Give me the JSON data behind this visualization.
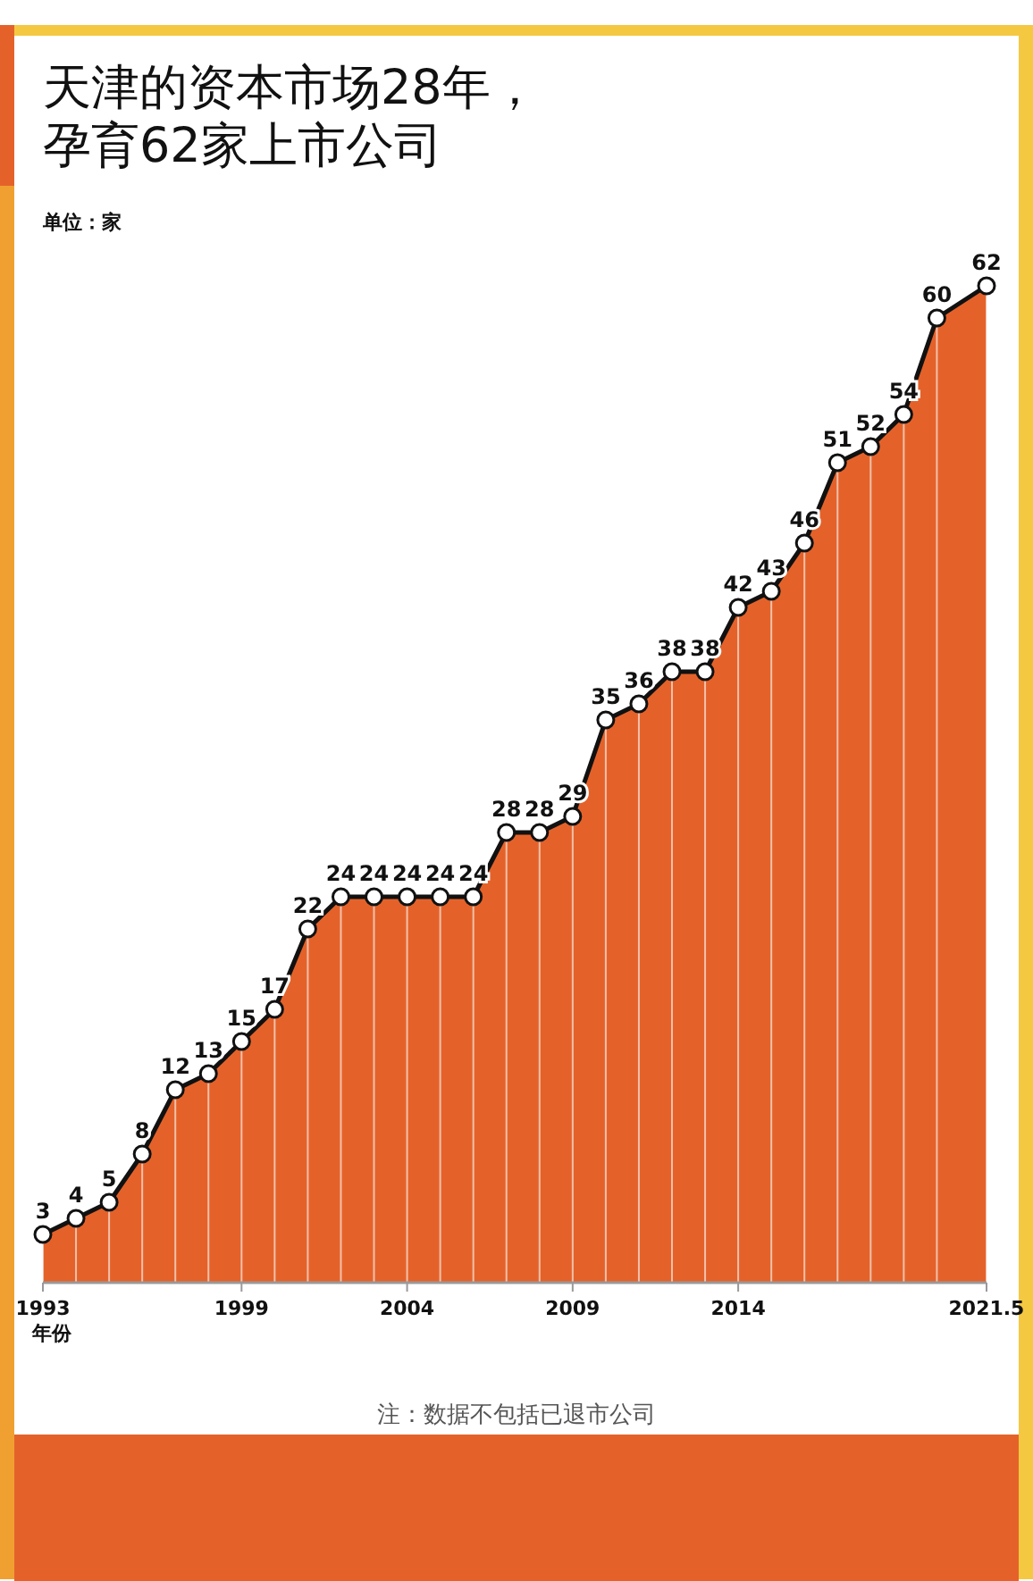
{
  "chart_data": {
    "type": "area",
    "title": "天津的资本市场28年，孕育62家上市公司",
    "ylabel": "单位：家",
    "xlabel": "年份",
    "x": [
      1993,
      1994,
      1995,
      1996,
      1997,
      1998,
      1999,
      2000,
      2001,
      2002,
      2003,
      2004,
      2005,
      2006,
      2007,
      2008,
      2009,
      2010,
      2011,
      2012,
      2013,
      2014,
      2015,
      2016,
      2017,
      2018,
      2019,
      2020,
      2021.5
    ],
    "xlim": [
      1993,
      2021.5
    ],
    "xticks": [
      1993,
      1999,
      2004,
      2009,
      2014,
      2021.5
    ],
    "series": [
      {
        "color": "#e4622a",
        "values": [
          3,
          4,
          5,
          8,
          12,
          13,
          15,
          17,
          22,
          24,
          24,
          24,
          24,
          24,
          28,
          28,
          29,
          35,
          36,
          38,
          38,
          42,
          43,
          46,
          51,
          52,
          54,
          60,
          62
        ]
      }
    ],
    "data_labels": true,
    "marker": "circle",
    "line_style": "solid",
    "annotations": [
      "注：数据不包括已退市公司"
    ]
  }
}
